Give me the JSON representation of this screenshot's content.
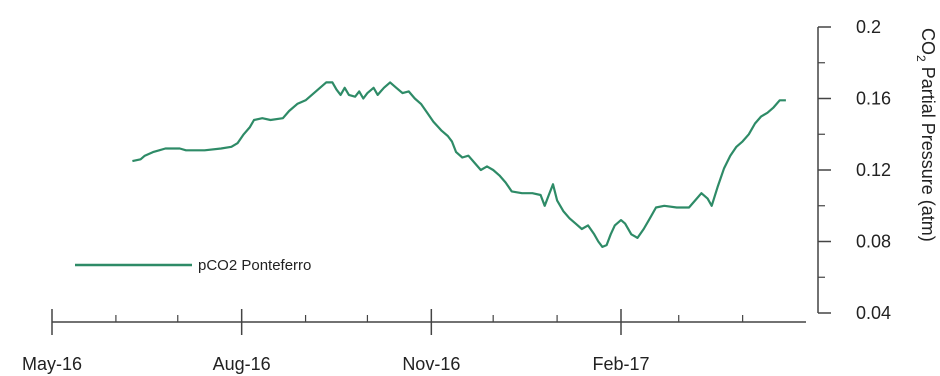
{
  "chart_data": {
    "type": "line",
    "title": "",
    "xlabel": "",
    "ylabel": "CO2 Partial Pressure (atm)",
    "ylabel_parts": {
      "pre": "CO",
      "sub": "2",
      "post": " Partial Pressure (atm)"
    },
    "ylim": [
      0.04,
      0.2
    ],
    "yticks": [
      {
        "value": 0.04,
        "label": "0.04"
      },
      {
        "value": 0.08,
        "label": "0.08"
      },
      {
        "value": 0.12,
        "label": "0.12"
      },
      {
        "value": 0.16,
        "label": "0.16"
      },
      {
        "value": 0.2,
        "label": "0.2"
      }
    ],
    "xlim": [
      "2016-04-15",
      "2017-04-15"
    ],
    "xticks": [
      {
        "date": "2016-05-01",
        "label": "May-16"
      },
      {
        "date": "2016-08-01",
        "label": "Aug-16"
      },
      {
        "date": "2016-11-01",
        "label": "Nov-16"
      },
      {
        "date": "2017-02-01",
        "label": "Feb-17"
      }
    ],
    "minor_xtick_dates": [
      "2016-06-01",
      "2016-07-01",
      "2016-09-01",
      "2016-10-01",
      "2016-12-01",
      "2017-01-01",
      "2017-03-01",
      "2017-04-01"
    ],
    "grid": false,
    "legend_position": "lower-left",
    "series": [
      {
        "name": "pCO2 Ponteferro",
        "color": "#2e8b67",
        "points": [
          [
            "2016-06-09",
            0.125
          ],
          [
            "2016-06-13",
            0.126
          ],
          [
            "2016-06-15",
            0.128
          ],
          [
            "2016-06-19",
            0.13
          ],
          [
            "2016-06-22",
            0.131
          ],
          [
            "2016-06-25",
            0.132
          ],
          [
            "2016-07-02",
            0.132
          ],
          [
            "2016-07-05",
            0.131
          ],
          [
            "2016-07-14",
            0.131
          ],
          [
            "2016-07-22",
            0.132
          ],
          [
            "2016-07-27",
            0.133
          ],
          [
            "2016-07-30",
            0.135
          ],
          [
            "2016-08-02",
            0.14
          ],
          [
            "2016-08-05",
            0.144
          ],
          [
            "2016-08-07",
            0.148
          ],
          [
            "2016-08-11",
            0.149
          ],
          [
            "2016-08-15",
            0.148
          ],
          [
            "2016-08-21",
            0.149
          ],
          [
            "2016-08-24",
            0.153
          ],
          [
            "2016-08-28",
            0.157
          ],
          [
            "2016-09-01",
            0.159
          ],
          [
            "2016-09-04",
            0.162
          ],
          [
            "2016-09-08",
            0.166
          ],
          [
            "2016-09-11",
            0.169
          ],
          [
            "2016-09-14",
            0.169
          ],
          [
            "2016-09-16",
            0.165
          ],
          [
            "2016-09-18",
            0.162
          ],
          [
            "2016-09-20",
            0.166
          ],
          [
            "2016-09-22",
            0.162
          ],
          [
            "2016-09-25",
            0.161
          ],
          [
            "2016-09-27",
            0.164
          ],
          [
            "2016-09-29",
            0.16
          ],
          [
            "2016-10-01",
            0.163
          ],
          [
            "2016-10-04",
            0.166
          ],
          [
            "2016-10-06",
            0.162
          ],
          [
            "2016-10-09",
            0.166
          ],
          [
            "2016-10-12",
            0.169
          ],
          [
            "2016-10-15",
            0.166
          ],
          [
            "2016-10-18",
            0.163
          ],
          [
            "2016-10-21",
            0.164
          ],
          [
            "2016-10-24",
            0.16
          ],
          [
            "2016-10-27",
            0.157
          ],
          [
            "2016-10-30",
            0.152
          ],
          [
            "2016-11-02",
            0.147
          ],
          [
            "2016-11-06",
            0.142
          ],
          [
            "2016-11-09",
            0.139
          ],
          [
            "2016-11-11",
            0.136
          ],
          [
            "2016-11-13",
            0.13
          ],
          [
            "2016-11-16",
            0.127
          ],
          [
            "2016-11-19",
            0.128
          ],
          [
            "2016-11-22",
            0.124
          ],
          [
            "2016-11-25",
            0.12
          ],
          [
            "2016-11-28",
            0.122
          ],
          [
            "2016-12-01",
            0.12
          ],
          [
            "2016-12-04",
            0.117
          ],
          [
            "2016-12-07",
            0.113
          ],
          [
            "2016-12-10",
            0.108
          ],
          [
            "2016-12-15",
            0.107
          ],
          [
            "2016-12-20",
            0.107
          ],
          [
            "2016-12-24",
            0.106
          ],
          [
            "2016-12-26",
            0.1
          ],
          [
            "2016-12-28",
            0.106
          ],
          [
            "2016-12-30",
            0.112
          ],
          [
            "2017-01-01",
            0.103
          ],
          [
            "2017-01-04",
            0.097
          ],
          [
            "2017-01-07",
            0.093
          ],
          [
            "2017-01-10",
            0.09
          ],
          [
            "2017-01-13",
            0.087
          ],
          [
            "2017-01-16",
            0.089
          ],
          [
            "2017-01-19",
            0.084
          ],
          [
            "2017-01-21",
            0.08
          ],
          [
            "2017-01-23",
            0.077
          ],
          [
            "2017-01-25",
            0.078
          ],
          [
            "2017-01-27",
            0.084
          ],
          [
            "2017-01-29",
            0.089
          ],
          [
            "2017-02-01",
            0.092
          ],
          [
            "2017-02-03",
            0.09
          ],
          [
            "2017-02-06",
            0.084
          ],
          [
            "2017-02-09",
            0.082
          ],
          [
            "2017-02-12",
            0.087
          ],
          [
            "2017-02-15",
            0.093
          ],
          [
            "2017-02-18",
            0.099
          ],
          [
            "2017-02-22",
            0.1
          ],
          [
            "2017-02-28",
            0.099
          ],
          [
            "2017-03-06",
            0.099
          ],
          [
            "2017-03-09",
            0.103
          ],
          [
            "2017-03-12",
            0.107
          ],
          [
            "2017-03-15",
            0.104
          ],
          [
            "2017-03-17",
            0.1
          ],
          [
            "2017-03-20",
            0.111
          ],
          [
            "2017-03-23",
            0.121
          ],
          [
            "2017-03-26",
            0.128
          ],
          [
            "2017-03-29",
            0.133
          ],
          [
            "2017-04-01",
            0.136
          ],
          [
            "2017-04-04",
            0.14
          ],
          [
            "2017-04-07",
            0.146
          ],
          [
            "2017-04-10",
            0.15
          ],
          [
            "2017-04-13",
            0.152
          ],
          [
            "2017-04-16",
            0.155
          ],
          [
            "2017-04-19",
            0.159
          ],
          [
            "2017-04-22",
            0.159
          ]
        ]
      }
    ]
  }
}
